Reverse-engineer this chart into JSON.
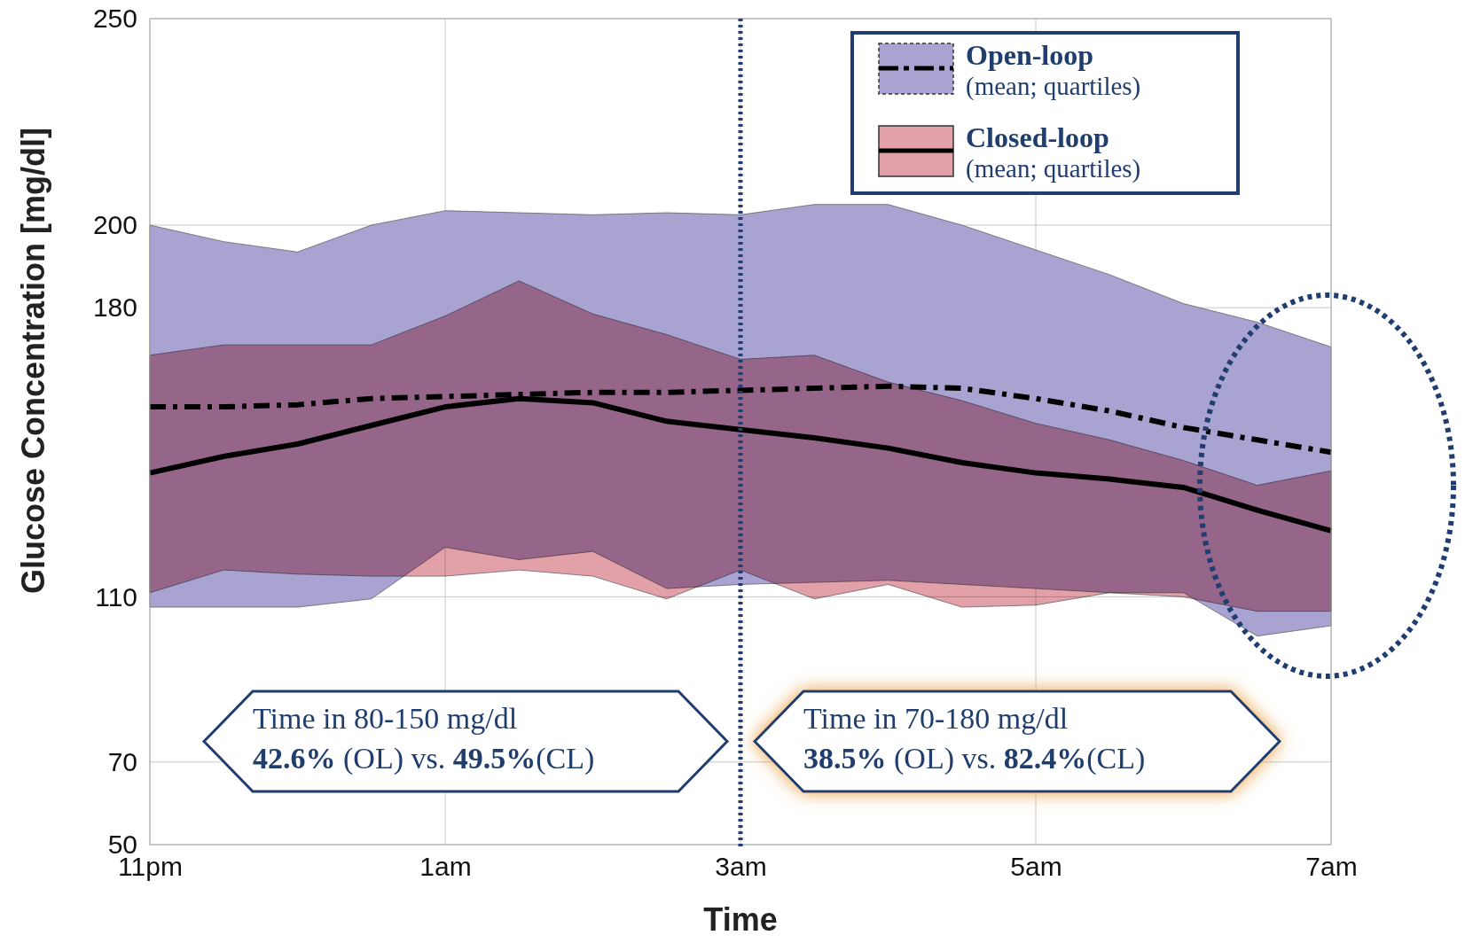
{
  "chart_data": {
    "type": "line",
    "xlabel": "Time",
    "ylabel": "Glucose Concentration [mg/dl]",
    "categories": [
      "11pm",
      null,
      null,
      null,
      "1am",
      null,
      null,
      null,
      "3am",
      null,
      null,
      null,
      "5am",
      null,
      null,
      null,
      "7am"
    ],
    "ylim": [
      50,
      250
    ],
    "yticks": [
      50,
      70,
      110,
      180,
      200,
      250
    ],
    "grid": true,
    "legend": "top right",
    "series": [
      {
        "name": "Open-loop (mean; quartiles)",
        "color": "#000000",
        "line_style": "dashed",
        "values": [
          156,
          156,
          156.5,
          158,
          158.5,
          159,
          159.5,
          159.5,
          160,
          160.5,
          161,
          160.5,
          158,
          155,
          151,
          148,
          145
        ],
        "upper": [
          200,
          196,
          193.5,
          200,
          203.5,
          203,
          202.5,
          203,
          202.5,
          205,
          205,
          200,
          194,
          188,
          181,
          176.5,
          170.5
        ],
        "lower": [
          107.5,
          107.5,
          107.5,
          109.5,
          122,
          119,
          121,
          112,
          113,
          113.5,
          114,
          113,
          112,
          111,
          111,
          100.5,
          103
        ]
      },
      {
        "name": "Closed-loop (mean; quartiles)",
        "color": "#000000",
        "line_style": "solid",
        "values": [
          140,
          144,
          147,
          151.5,
          156,
          158,
          157,
          152.5,
          150.5,
          148.5,
          146,
          142.5,
          140,
          138.5,
          136.5,
          131,
          126
        ],
        "upper": [
          168.5,
          171,
          171,
          171,
          178,
          186.5,
          178.5,
          173.5,
          167.5,
          168.5,
          162,
          157.5,
          152,
          148,
          143,
          137,
          140.5
        ],
        "lower": [
          111,
          116.5,
          115.5,
          115,
          115,
          116.5,
          115,
          109.5,
          116.5,
          109.5,
          113,
          107.5,
          108,
          111,
          110,
          106.5,
          106.5
        ]
      }
    ],
    "ref_lines": [
      {
        "axis": "x",
        "value": "3am",
        "color": "#1f3d6e",
        "line_style": "dotted"
      }
    ],
    "annotations": [
      "Time in 80-150 mg/dl\n42.6% (OL) vs. 49.5%(CL)",
      "Time in 70-180 mg/dl\n38.5% (OL) vs. 82.4%(CL)"
    ]
  }
}
